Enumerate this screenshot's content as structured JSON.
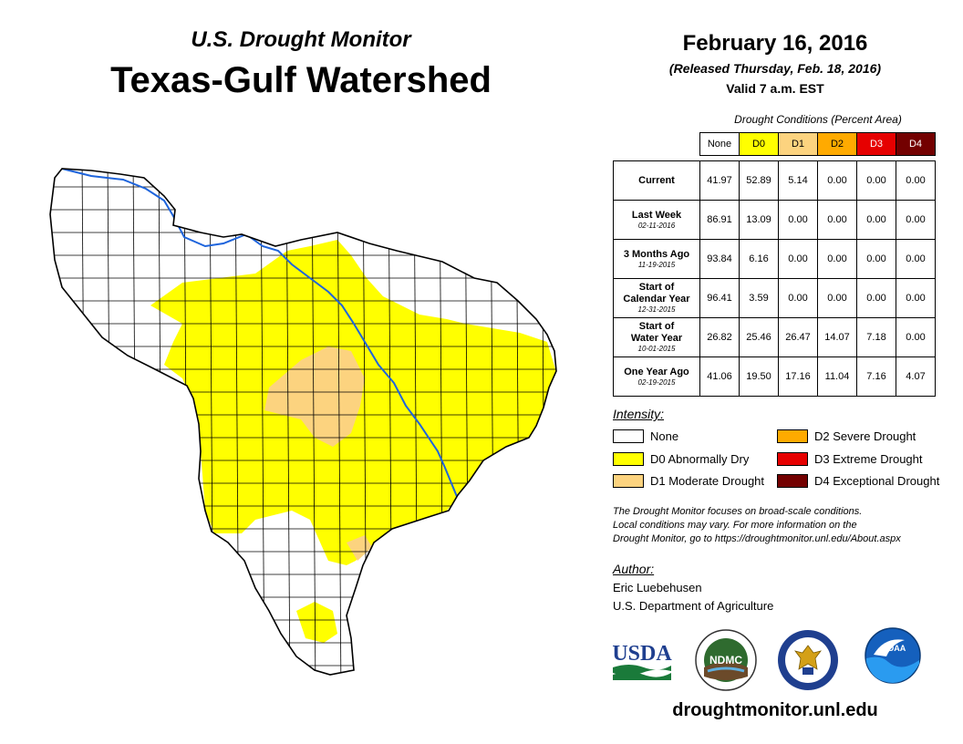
{
  "header": {
    "subtitle": "U.S. Drought Monitor",
    "title": "Texas-Gulf Watershed",
    "date": "February 16, 2016",
    "released": "(Released Thursday, Feb. 18, 2016)",
    "valid": "Valid 7 a.m. EST"
  },
  "table": {
    "caption": "Drought Conditions (Percent Area)",
    "columns": [
      {
        "label": "None",
        "color": "#ffffff"
      },
      {
        "label": "D0",
        "color": "#ffff00"
      },
      {
        "label": "D1",
        "color": "#fcd37f"
      },
      {
        "label": "D2",
        "color": "#ffaa00"
      },
      {
        "label": "D3",
        "color": "#e60000"
      },
      {
        "label": "D4",
        "color": "#730000"
      }
    ],
    "rows": [
      {
        "label": "Current",
        "label2": "",
        "date": "",
        "values": [
          "41.97",
          "52.89",
          "5.14",
          "0.00",
          "0.00",
          "0.00"
        ]
      },
      {
        "label": "Last Week",
        "label2": "",
        "date": "02-11-2016",
        "values": [
          "86.91",
          "13.09",
          "0.00",
          "0.00",
          "0.00",
          "0.00"
        ]
      },
      {
        "label": "3 Months Ago",
        "label2": "",
        "date": "11-19-2015",
        "values": [
          "93.84",
          "6.16",
          "0.00",
          "0.00",
          "0.00",
          "0.00"
        ]
      },
      {
        "label": "Start of",
        "label2": "Calendar Year",
        "date": "12-31-2015",
        "values": [
          "96.41",
          "3.59",
          "0.00",
          "0.00",
          "0.00",
          "0.00"
        ]
      },
      {
        "label": "Start of",
        "label2": "Water Year",
        "date": "10-01-2015",
        "values": [
          "26.82",
          "25.46",
          "26.47",
          "14.07",
          "7.18",
          "0.00"
        ]
      },
      {
        "label": "One Year Ago",
        "label2": "",
        "date": "02-19-2015",
        "values": [
          "41.06",
          "19.50",
          "17.16",
          "11.04",
          "7.16",
          "4.07"
        ]
      }
    ]
  },
  "legend": {
    "heading": "Intensity:",
    "items": [
      {
        "label": "None",
        "color": "#ffffff"
      },
      {
        "label": "D0 Abnormally Dry",
        "color": "#ffff00"
      },
      {
        "label": "D1 Moderate Drought",
        "color": "#fcd37f"
      },
      {
        "label": "D2 Severe Drought",
        "color": "#ffaa00"
      },
      {
        "label": "D3 Extreme Drought",
        "color": "#e60000"
      },
      {
        "label": "D4 Exceptional Drought",
        "color": "#730000"
      }
    ]
  },
  "note": {
    "line1": "The Drought Monitor focuses on broad-scale conditions.",
    "line2": "Local conditions may vary. For more information on the",
    "line3": "Drought Monitor, go to https://droughtmonitor.unl.edu/About.aspx"
  },
  "author": {
    "heading": "Author:",
    "name": "Eric Luebehusen",
    "org": "U.S. Department of Agriculture"
  },
  "logos": {
    "usda": "USDA",
    "ndmc": "NDMC",
    "noaa": "NOAA",
    "commerce_icon": "eagle-seal-icon"
  },
  "website": "droughtmonitor.unl.edu"
}
